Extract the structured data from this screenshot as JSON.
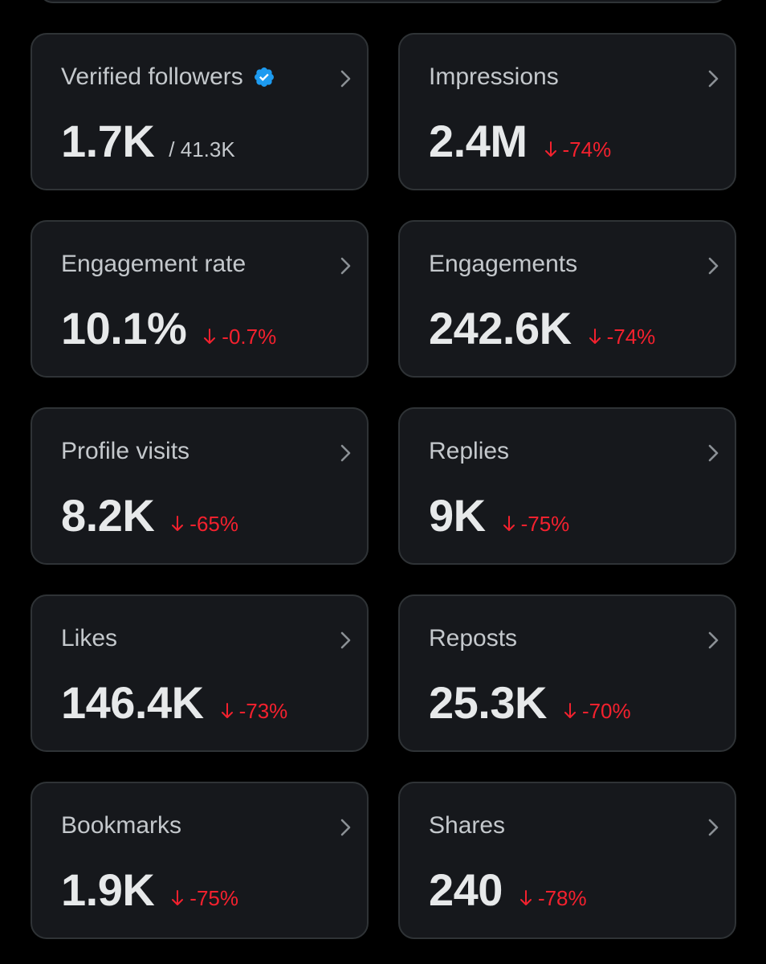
{
  "colors": {
    "background": "#000000",
    "card_background": "#16181c",
    "card_border": "#2f3336",
    "label": "#c4c8cc",
    "value": "#e7e9ea",
    "negative": "#f4212e",
    "verified": "#1d9bf0"
  },
  "metrics": [
    {
      "label": "Verified followers",
      "value": "1.7K",
      "secondary": "/ 41.3K",
      "icon": "verified-badge-icon"
    },
    {
      "label": "Impressions",
      "value": "2.4M",
      "change": "-74%",
      "direction": "down"
    },
    {
      "label": "Engagement rate",
      "value": "10.1%",
      "change": "-0.7%",
      "direction": "down"
    },
    {
      "label": "Engagements",
      "value": "242.6K",
      "change": "-74%",
      "direction": "down"
    },
    {
      "label": "Profile visits",
      "value": "8.2K",
      "change": "-65%",
      "direction": "down"
    },
    {
      "label": "Replies",
      "value": "9K",
      "change": "-75%",
      "direction": "down"
    },
    {
      "label": "Likes",
      "value": "146.4K",
      "change": "-73%",
      "direction": "down"
    },
    {
      "label": "Reposts",
      "value": "25.3K",
      "change": "-70%",
      "direction": "down"
    },
    {
      "label": "Bookmarks",
      "value": "1.9K",
      "change": "-75%",
      "direction": "down"
    },
    {
      "label": "Shares",
      "value": "240",
      "change": "-78%",
      "direction": "down"
    }
  ]
}
